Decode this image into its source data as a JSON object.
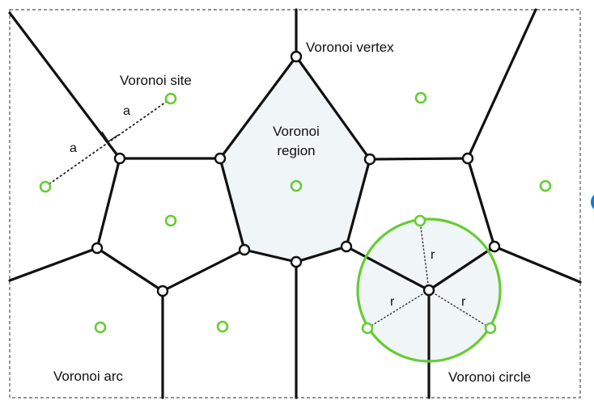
{
  "labels": {
    "voronoi_site": "Voronoi site",
    "voronoi_vertex": "Voronoi vertex",
    "voronoi_region_line1": "Voronoi",
    "voronoi_region_line2": "region",
    "voronoi_arc": "Voronoi arc",
    "voronoi_circle": "Voronoi circle",
    "distance_a1": "a",
    "distance_a2": "a",
    "radius_r1": "r",
    "radius_r2": "r",
    "radius_r3": "r"
  },
  "colors": {
    "site": "#66cc33",
    "edge": "#111111",
    "region_fill": "#f0f5f8",
    "accent_dot": "#1f78c8"
  }
}
